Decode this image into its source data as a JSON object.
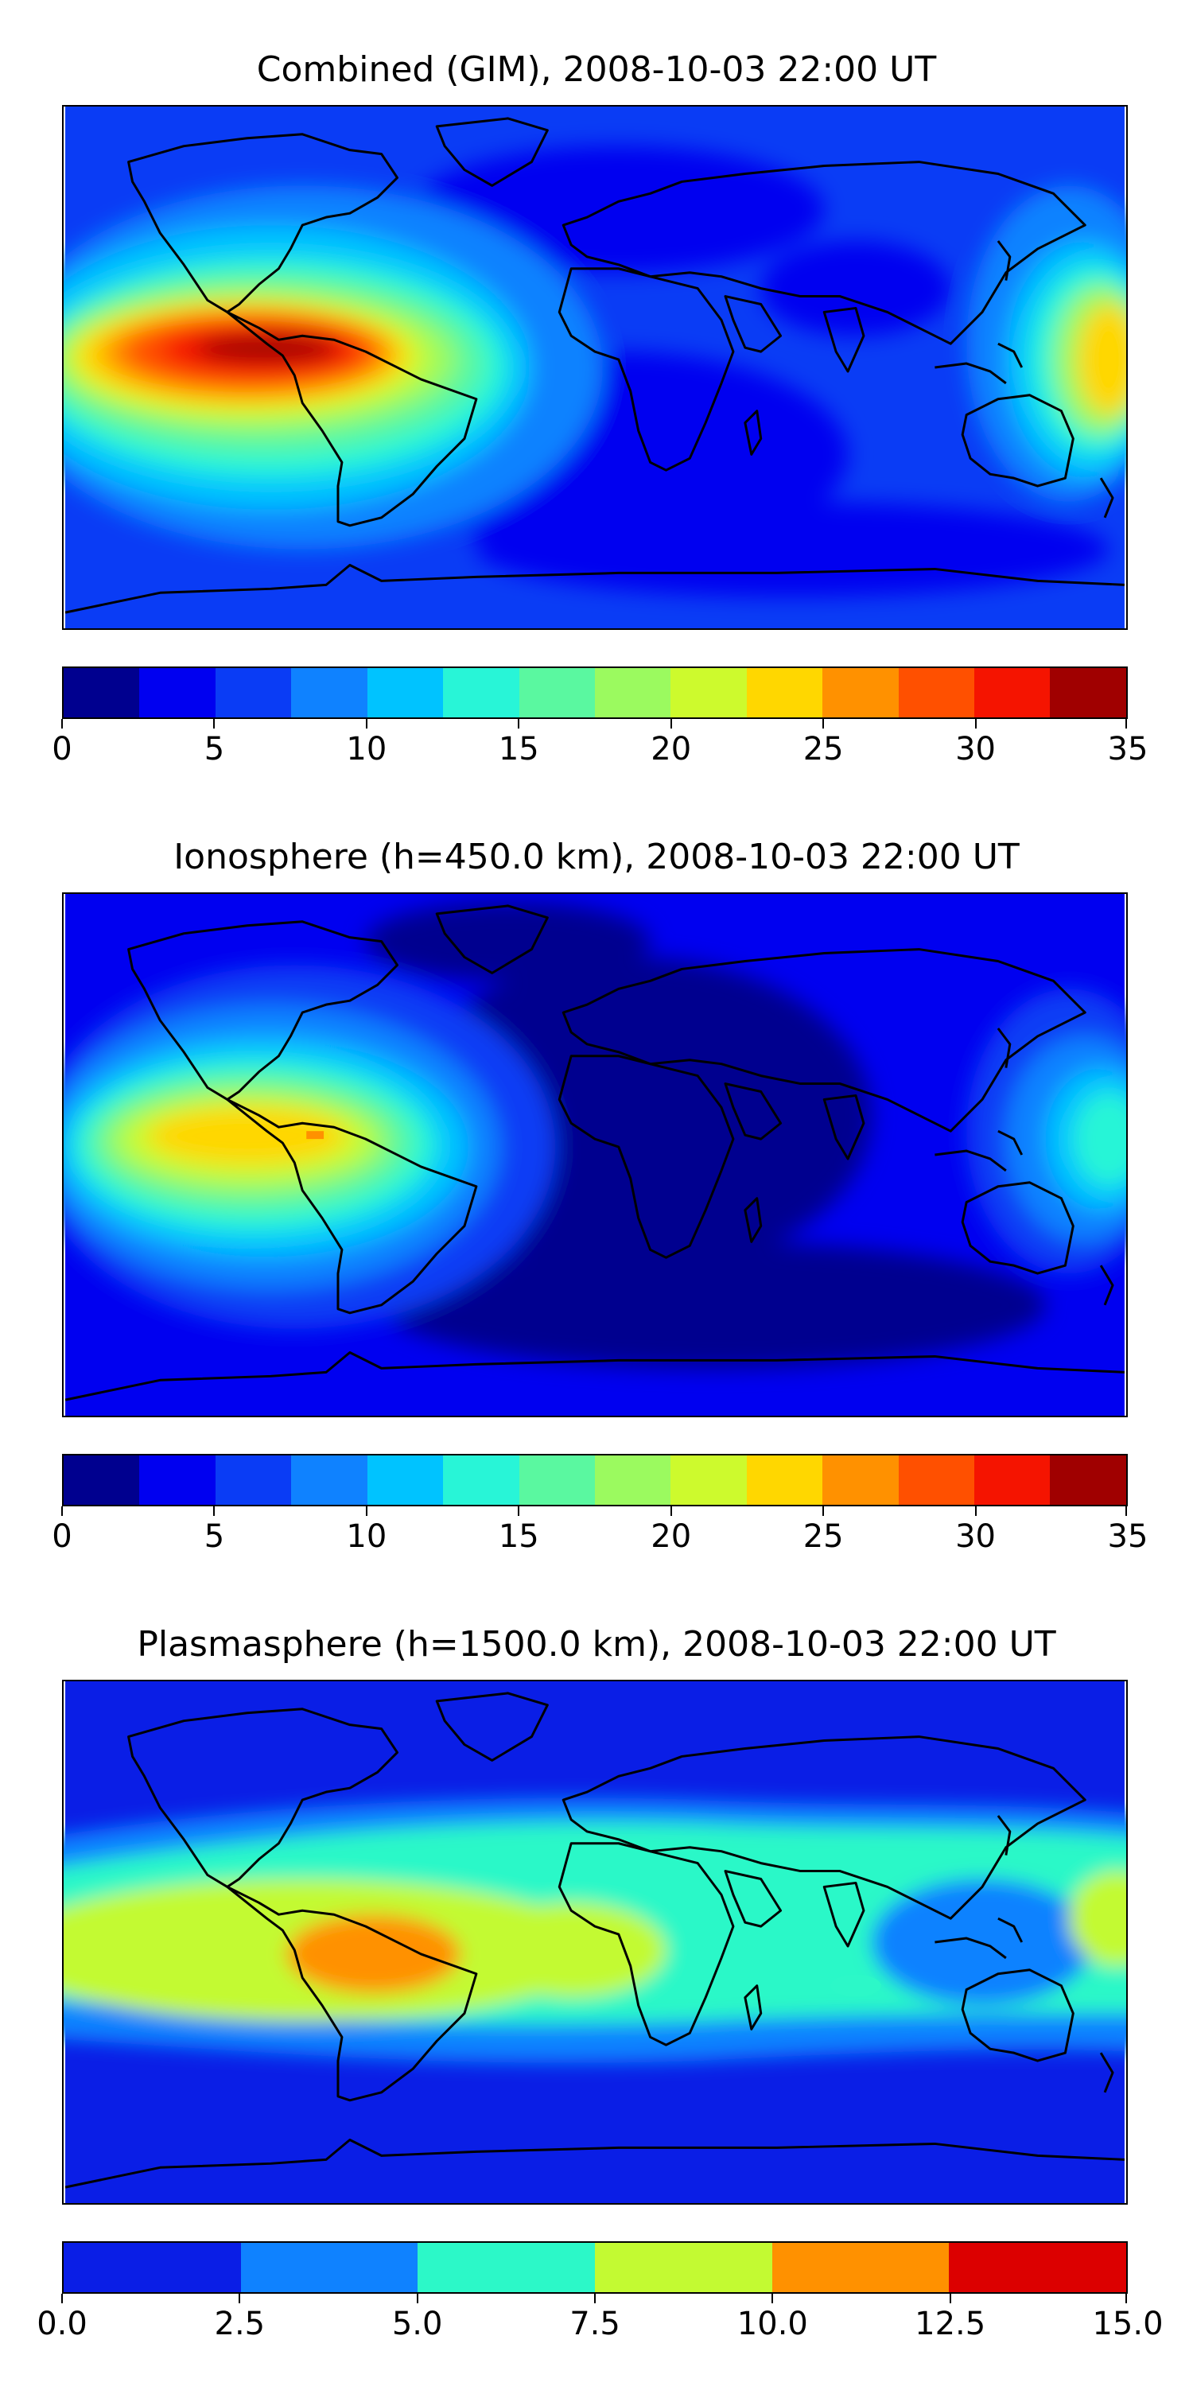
{
  "chart_data": [
    {
      "type": "heatmap",
      "title": "Combined (GIM), 2008-10-03 22:00 UT",
      "map": "world map, equirectangular projection",
      "colorbar": {
        "ticks": [
          "0",
          "5",
          "10",
          "15",
          "20",
          "25",
          "30",
          "35"
        ],
        "range": [
          0,
          35
        ],
        "levels": [
          0,
          2.5,
          5,
          7.5,
          10,
          12.5,
          15,
          17.5,
          20,
          22.5,
          25,
          27.5,
          30,
          32.5,
          35
        ],
        "colors": [
          "#00008f",
          "#0000f0",
          "#0a3cf5",
          "#0f82ff",
          "#00c3ff",
          "#28f5d7",
          "#5af8a0",
          "#9bfa5f",
          "#cdfa2d",
          "#ffd700",
          "#ff9100",
          "#ff5000",
          "#f51400",
          "#a00000"
        ]
      }
    },
    {
      "type": "heatmap",
      "title": "Ionosphere  (h=450.0 km), 2008-10-03 22:00 UT",
      "map": "world map, equirectangular projection",
      "colorbar": {
        "ticks": [
          "0",
          "5",
          "10",
          "15",
          "20",
          "25",
          "30",
          "35"
        ],
        "range": [
          0,
          35
        ],
        "levels": [
          0,
          2.5,
          5,
          7.5,
          10,
          12.5,
          15,
          17.5,
          20,
          22.5,
          25,
          27.5,
          30,
          32.5,
          35
        ],
        "colors": [
          "#00008f",
          "#0000f0",
          "#0a3cf5",
          "#0f82ff",
          "#00c3ff",
          "#28f5d7",
          "#5af8a0",
          "#9bfa5f",
          "#cdfa2d",
          "#ffd700",
          "#ff9100",
          "#ff5000",
          "#f51400",
          "#a00000"
        ]
      }
    },
    {
      "type": "heatmap",
      "title": "Plasmasphere (h=1500.0 km), 2008-10-03 22:00 UT",
      "map": "world map, equirectangular projection",
      "colorbar": {
        "ticks": [
          "0.0",
          "2.5",
          "5.0",
          "7.5",
          "10.0",
          "12.5",
          "15.0"
        ],
        "range": [
          0,
          15
        ],
        "levels": [
          0,
          2.5,
          5,
          7.5,
          10,
          12.5,
          15
        ],
        "colors": [
          "#0a1ee6",
          "#0f82ff",
          "#2cf8c8",
          "#c3fa32",
          "#ff9100",
          "#dc0000"
        ]
      }
    }
  ]
}
